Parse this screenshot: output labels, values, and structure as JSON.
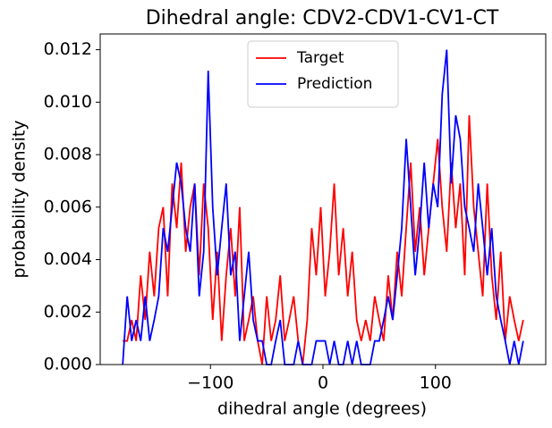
{
  "chart_data": {
    "type": "line",
    "title": "Dihedral angle: CDV2-CDV1-CV1-CT",
    "xlabel": "dihedral angle (degrees)",
    "ylabel": "probability density",
    "x": [
      -178,
      -174,
      -170,
      -166,
      -162,
      -158,
      -154,
      -150,
      -146,
      -142,
      -138,
      -134,
      -130,
      -126,
      -122,
      -118,
      -114,
      -110,
      -106,
      -102,
      -98,
      -94,
      -90,
      -86,
      -82,
      -78,
      -74,
      -70,
      -66,
      -62,
      -58,
      -54,
      -50,
      -46,
      -42,
      -38,
      -34,
      -30,
      -26,
      -22,
      -18,
      -14,
      -10,
      -6,
      -2,
      2,
      6,
      10,
      14,
      18,
      22,
      26,
      30,
      34,
      38,
      42,
      46,
      50,
      54,
      58,
      62,
      66,
      70,
      74,
      78,
      82,
      86,
      90,
      94,
      98,
      102,
      106,
      110,
      114,
      118,
      122,
      126,
      130,
      134,
      138,
      142,
      146,
      150,
      154,
      158,
      162,
      166,
      170,
      174,
      178
    ],
    "series": [
      {
        "name": "Target",
        "color": "#ff0000",
        "values": [
          0.0009,
          0.0009,
          0.0017,
          0.0009,
          0.0034,
          0.0017,
          0.0043,
          0.0026,
          0.0052,
          0.006,
          0.0026,
          0.0069,
          0.0052,
          0.0077,
          0.0043,
          0.006,
          0.0069,
          0.0034,
          0.0069,
          0.0052,
          0.0017,
          0.0043,
          0.0009,
          0.0034,
          0.0052,
          0.0026,
          0.006,
          0.0009,
          0.0017,
          0.0026,
          0.0009,
          0.0,
          0.0026,
          0.0009,
          0.0017,
          0.0034,
          0.0009,
          0.0017,
          0.0026,
          0.0009,
          0.0,
          0.0017,
          0.0052,
          0.0034,
          0.006,
          0.0026,
          0.0043,
          0.0069,
          0.0034,
          0.0052,
          0.0026,
          0.0043,
          0.0017,
          0.0009,
          0.0017,
          0.0009,
          0.0026,
          0.0017,
          0.0009,
          0.0034,
          0.0017,
          0.0043,
          0.0026,
          0.0052,
          0.0077,
          0.0043,
          0.006,
          0.0034,
          0.0052,
          0.0069,
          0.0086,
          0.006,
          0.0043,
          0.0077,
          0.0052,
          0.0069,
          0.0034,
          0.0095,
          0.006,
          0.0043,
          0.0026,
          0.0069,
          0.0034,
          0.0017,
          0.0043,
          0.0009,
          0.0026,
          0.0017,
          0.0009,
          0.0017
        ]
      },
      {
        "name": "Prediction",
        "color": "#0000ff",
        "values": [
          0.0,
          0.0026,
          0.0009,
          0.0017,
          0.0009,
          0.0026,
          0.0009,
          0.0017,
          0.0026,
          0.0052,
          0.0043,
          0.006,
          0.0077,
          0.0069,
          0.0052,
          0.0043,
          0.0069,
          0.0026,
          0.0043,
          0.0112,
          0.006,
          0.0034,
          0.0052,
          0.0069,
          0.0034,
          0.0043,
          0.0009,
          0.0026,
          0.0043,
          0.0017,
          0.0009,
          0.0009,
          0.0,
          0.0,
          0.0009,
          0.0017,
          0.0,
          0.0,
          0.0,
          0.0009,
          0.0,
          0.0,
          0.0,
          0.0009,
          0.0009,
          0.0009,
          0.0,
          0.0009,
          0.0,
          0.0,
          0.0009,
          0.0,
          0.0009,
          0.0,
          0.0,
          0.0,
          0.0009,
          0.0009,
          0.0017,
          0.0026,
          0.0017,
          0.0034,
          0.0052,
          0.0086,
          0.006,
          0.0034,
          0.0052,
          0.0077,
          0.0052,
          0.0069,
          0.006,
          0.0103,
          0.012,
          0.0069,
          0.0095,
          0.0086,
          0.006,
          0.0052,
          0.0043,
          0.0069,
          0.0052,
          0.0034,
          0.0052,
          0.0026,
          0.0017,
          0.0009,
          0.0,
          0.0009,
          0.0,
          0.0009
        ]
      }
    ],
    "xlim": [
      -198,
      198
    ],
    "ylim": [
      0,
      0.0126
    ],
    "xticks": [
      {
        "value": -100,
        "label": "−100"
      },
      0,
      100
    ],
    "yticks": [
      {
        "value": 0,
        "label": "0.000"
      },
      {
        "value": 0.002,
        "label": "0.002"
      },
      {
        "value": 0.004,
        "label": "0.004"
      },
      {
        "value": 0.006,
        "label": "0.006"
      },
      {
        "value": 0.008,
        "label": "0.008"
      },
      {
        "value": 0.01,
        "label": "0.010"
      },
      {
        "value": 0.012,
        "label": "0.012"
      }
    ],
    "legend": "upper center"
  }
}
